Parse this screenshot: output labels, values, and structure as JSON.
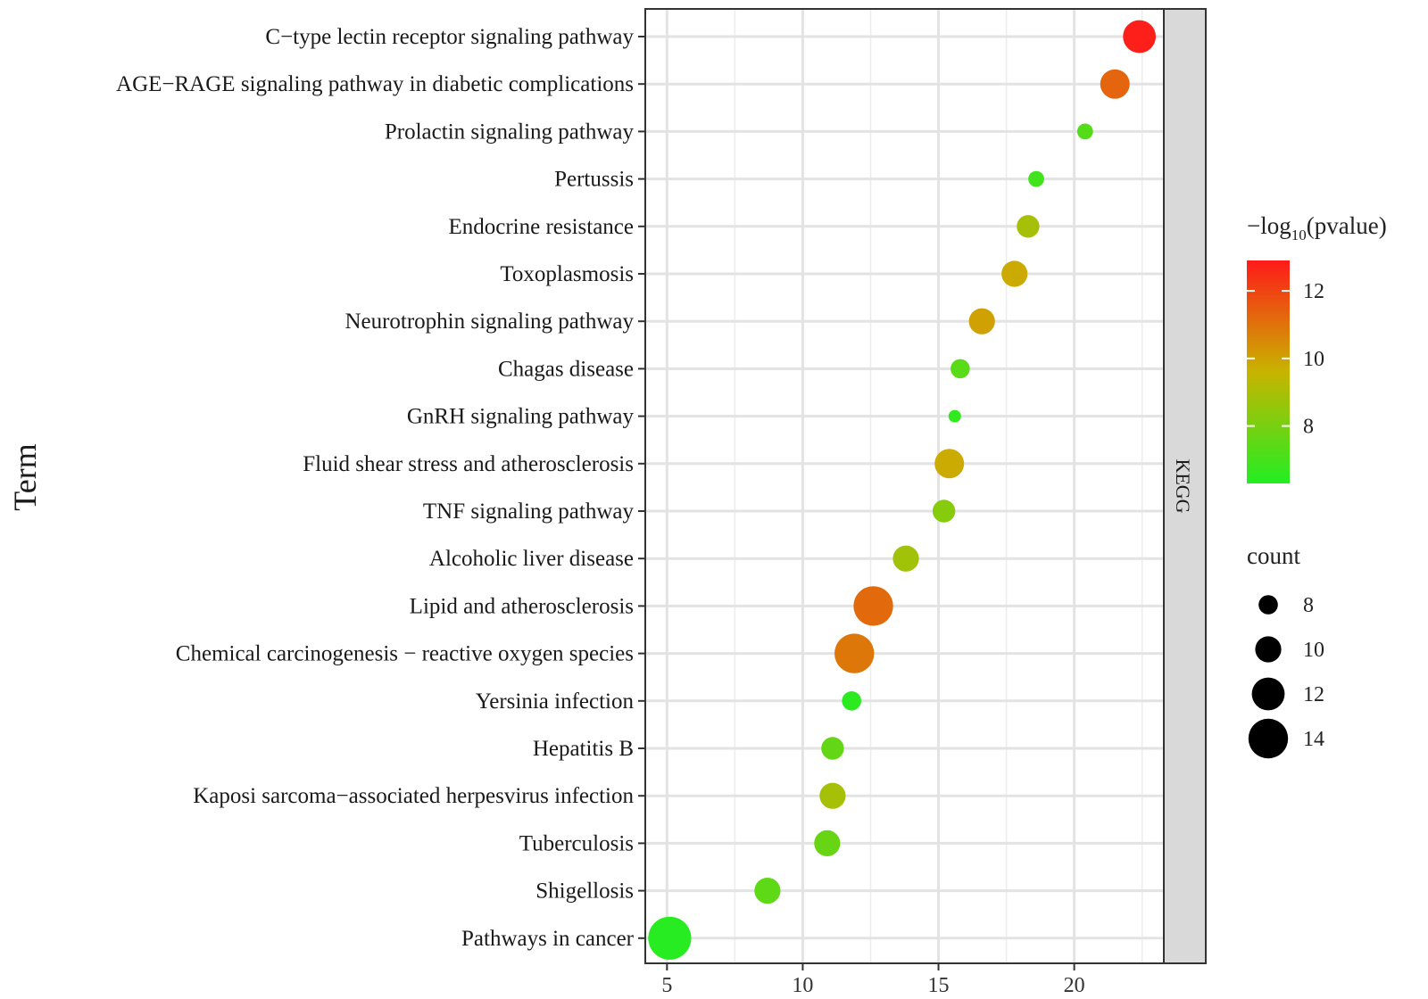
{
  "chart_data": {
    "type": "scatter",
    "ylabel": "Term",
    "xlabel": "",
    "facet_label": "KEGG",
    "xlim": [
      4.2,
      23.3
    ],
    "xticks": [
      5,
      10,
      15,
      20
    ],
    "points": [
      {
        "term": "C−type lectin receptor signaling pathway",
        "x": 22.4,
        "count": 12,
        "neglog10p": 12.8
      },
      {
        "term": "AGE−RAGE signaling pathway in diabetic complications",
        "x": 21.5,
        "count": 11,
        "neglog10p": 11.3
      },
      {
        "term": "Prolactin signaling pathway",
        "x": 20.4,
        "count": 7,
        "neglog10p": 7.3
      },
      {
        "term": "Pertussis",
        "x": 18.6,
        "count": 7,
        "neglog10p": 6.9
      },
      {
        "term": "Endocrine resistance",
        "x": 18.3,
        "count": 9,
        "neglog10p": 8.9
      },
      {
        "term": "Toxoplasmosis",
        "x": 17.8,
        "count": 10,
        "neglog10p": 9.8
      },
      {
        "term": "Neurotrophin signaling pathway",
        "x": 16.6,
        "count": 10,
        "neglog10p": 10.0
      },
      {
        "term": "Chagas disease",
        "x": 15.8,
        "count": 8,
        "neglog10p": 7.4
      },
      {
        "term": "GnRH signaling pathway",
        "x": 15.6,
        "count": 6,
        "neglog10p": 6.6
      },
      {
        "term": "Fluid shear stress and atherosclerosis",
        "x": 15.4,
        "count": 11,
        "neglog10p": 9.8
      },
      {
        "term": "TNF signaling pathway",
        "x": 15.2,
        "count": 9,
        "neglog10p": 8.3
      },
      {
        "term": "Alcoholic liver disease",
        "x": 13.8,
        "count": 10,
        "neglog10p": 8.8
      },
      {
        "term": "Lipid and atherosclerosis",
        "x": 12.6,
        "count": 14,
        "neglog10p": 11.2
      },
      {
        "term": "Chemical carcinogenesis − reactive oxygen species",
        "x": 11.9,
        "count": 14,
        "neglog10p": 10.9
      },
      {
        "term": "Yersinia infection",
        "x": 11.8,
        "count": 8,
        "neglog10p": 6.5
      },
      {
        "term": "Hepatitis B",
        "x": 11.1,
        "count": 9,
        "neglog10p": 7.6
      },
      {
        "term": "Kaposi sarcoma−associated herpesvirus infection",
        "x": 11.1,
        "count": 10,
        "neglog10p": 8.9
      },
      {
        "term": "Tuberculosis",
        "x": 10.9,
        "count": 10,
        "neglog10p": 7.7
      },
      {
        "term": "Shigellosis",
        "x": 8.7,
        "count": 10,
        "neglog10p": 7.5
      },
      {
        "term": "Pathways in cancer",
        "x": 5.1,
        "count": 15,
        "neglog10p": 6.4
      }
    ],
    "color_legend": {
      "title_prefix": "−log",
      "title_sub": "10",
      "title_suffix": "(pvalue)",
      "range": [
        6.3,
        12.9
      ],
      "ticks": [
        8,
        10,
        12
      ],
      "low_color": "#22ee22",
      "mid_color": "#c8b400",
      "high_color": "#ff1a1a"
    },
    "size_legend": {
      "title": "count",
      "values": [
        8,
        10,
        12,
        14
      ]
    }
  }
}
